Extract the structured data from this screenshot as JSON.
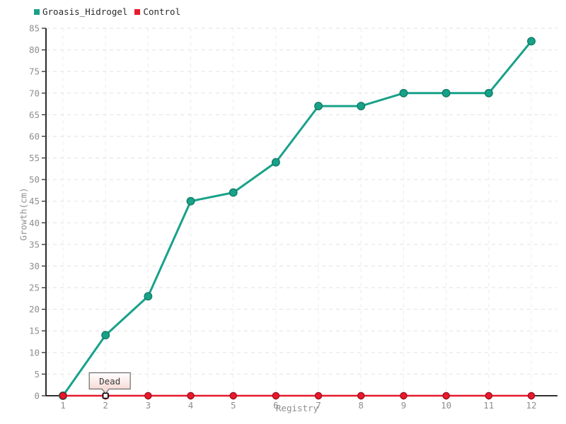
{
  "chart_data": {
    "type": "line",
    "title": "",
    "xlabel": "Registry",
    "ylabel": "Growth(cm)",
    "x": [
      1,
      2,
      3,
      4,
      5,
      6,
      7,
      8,
      9,
      10,
      11,
      12
    ],
    "series": [
      {
        "name": "Groasis_Hidrogel",
        "color": "#18a189",
        "marker_stroke": "#0f7a64",
        "values": [
          0,
          14,
          23,
          45,
          47,
          54,
          67,
          67,
          70,
          70,
          70,
          82
        ]
      },
      {
        "name": "Control",
        "color": "#e8192d",
        "marker_stroke": "#9f0f1e",
        "values": [
          0,
          0,
          0,
          0,
          0,
          0,
          0,
          0,
          0,
          0,
          0,
          0
        ]
      }
    ],
    "ylim": [
      0,
      85
    ],
    "ytick_step": 5,
    "grid": true,
    "legend_position": "top-left",
    "annotations": [
      {
        "text": "Dead",
        "x": 2,
        "y": 0
      }
    ]
  },
  "style": {
    "axis_color": "#141414",
    "tick_color": "#3a3a3a",
    "tick_label_color": "#8f8f8f",
    "hgrid_color": "#e2e2e2",
    "vgrid_color": "#ececec",
    "tooltip_border": "#6e6e6e",
    "tooltip_fill_top": "#ffffff",
    "tooltip_fill_bottom": "#f5d0cb",
    "tooltip_text": "#3c3c3c"
  }
}
